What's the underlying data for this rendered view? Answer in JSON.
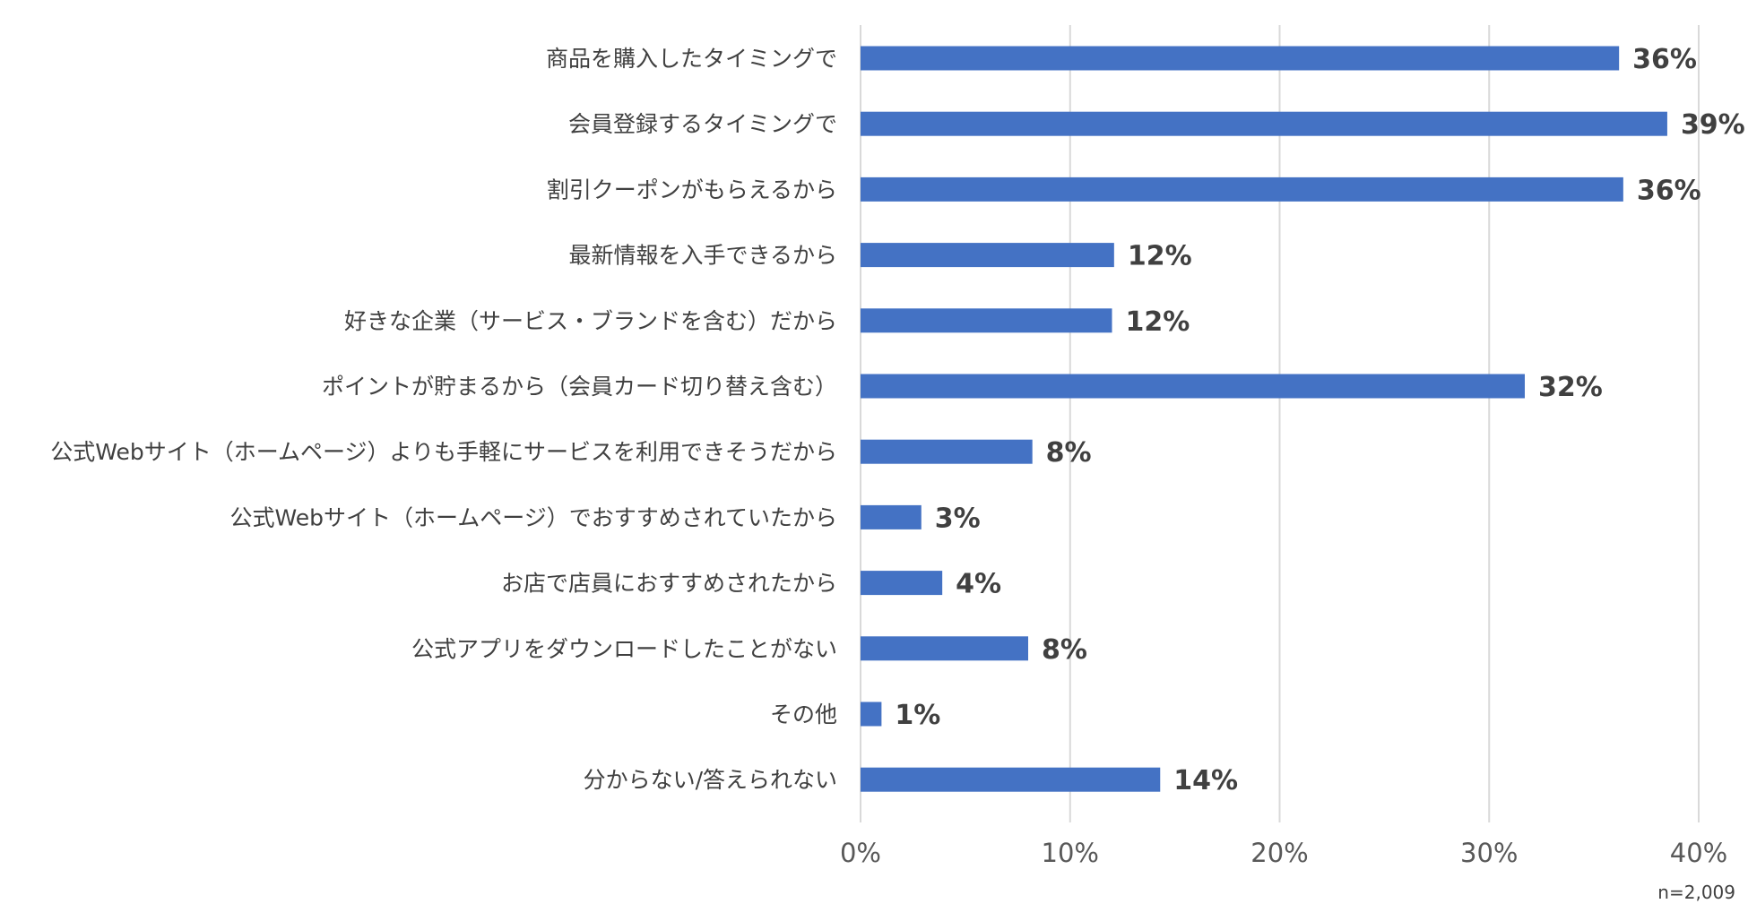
{
  "chart_data": {
    "type": "bar",
    "orientation": "horizontal",
    "categories": [
      "商品を購入したタイミングで",
      "会員登録するタイミングで",
      "割引クーポンがもらえるから",
      "最新情報を入手できるから",
      "好きな企業（サービス・ブランドを含む）だから",
      "ポイントが貯まるから（会員カード切り替え含む）",
      "公式Webサイト（ホームページ）よりも手軽にサービスを利用できそうだから",
      "公式Webサイト（ホームページ）でおすすめされていたから",
      "お店で店員におすすめされたから",
      "公式アプリをダウンロードしたことがない",
      "その他",
      "分からない/答えられない"
    ],
    "values": [
      36.2,
      38.5,
      36.4,
      12.1,
      12.0,
      31.7,
      8.2,
      2.9,
      3.9,
      8.0,
      1.0,
      14.3
    ],
    "value_labels": [
      "36%",
      "39%",
      "36%",
      "12%",
      "12%",
      "32%",
      "8%",
      "3%",
      "4%",
      "8%",
      "1%",
      "14%"
    ],
    "xlim": [
      0,
      40
    ],
    "x_ticks": [
      0,
      10,
      20,
      30,
      40
    ],
    "x_tick_labels": [
      "0%",
      "10%",
      "20%",
      "30%",
      "40%"
    ],
    "grid": true,
    "bar_color": "#4472C4",
    "title": "",
    "xlabel": "",
    "ylabel": "",
    "note": "n=2,009"
  }
}
